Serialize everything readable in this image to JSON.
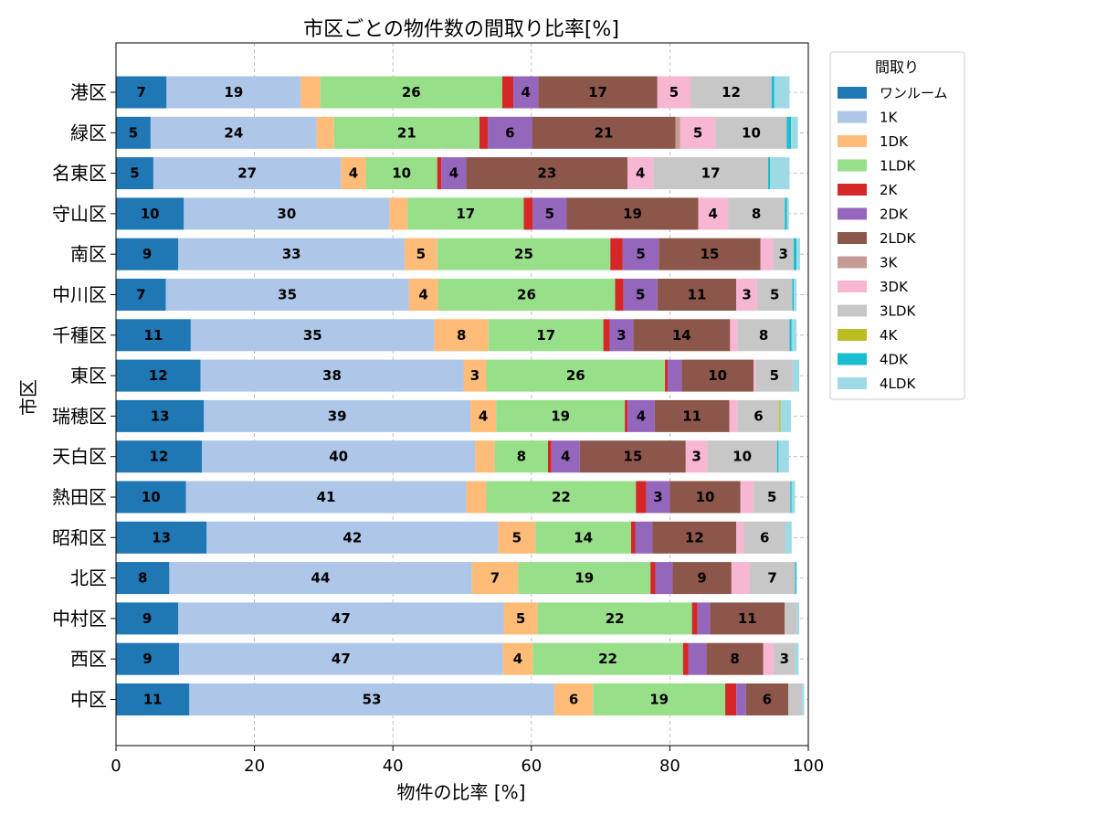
{
  "chart_data": {
    "type": "bar",
    "orientation": "horizontal",
    "stacked": true,
    "title": "市区ごとの物件数の間取り比率[%]",
    "xlabel": "物件の比率 [%]",
    "ylabel": "市区",
    "xlim": [
      0,
      100
    ],
    "xticks": [
      "0",
      "20",
      "40",
      "60",
      "80",
      "100"
    ],
    "grid": true,
    "legend": {
      "title": "間取り",
      "placement": "outside-right"
    },
    "label_min_value": 3,
    "categories": [
      "港区",
      "緑区",
      "名東区",
      "守山区",
      "南区",
      "中川区",
      "千種区",
      "東区",
      "瑞穂区",
      "天白区",
      "熱田区",
      "昭和区",
      "北区",
      "中村区",
      "西区",
      "中区"
    ],
    "series": [
      {
        "name": "ワンルーム",
        "color": "#1f77b4",
        "values": [
          7.3,
          5,
          5.4,
          9.8,
          9,
          7.2,
          10.8,
          12.2,
          12.7,
          12.4,
          10.1,
          13.1,
          7.7,
          9,
          9.1,
          10.6
        ]
      },
      {
        "name": "1K",
        "color": "#aec7e8",
        "values": [
          19.4,
          24,
          27.1,
          29.7,
          32.7,
          35.1,
          35.2,
          38,
          38.5,
          39.5,
          40.5,
          42.1,
          43.7,
          47,
          46.8,
          52.7
        ]
      },
      {
        "name": "1DK",
        "color": "#ffbb78",
        "values": [
          2.8,
          2.5,
          3.6,
          2.6,
          4.7,
          4.2,
          7.8,
          3.3,
          3.7,
          2.8,
          2.9,
          5.4,
          6.7,
          4.9,
          4.3,
          5.6
        ]
      },
      {
        "name": "1LDK",
        "color": "#98df8a",
        "values": [
          26.3,
          21,
          10.3,
          16.8,
          25,
          25.6,
          16.6,
          25.8,
          18.6,
          7.7,
          21.6,
          13.8,
          19.1,
          22.3,
          21.7,
          19.1
        ]
      },
      {
        "name": "2K",
        "color": "#d62728",
        "values": [
          1.6,
          1.2,
          0.6,
          1.3,
          1.8,
          1.2,
          0.9,
          0.4,
          0.4,
          0.5,
          1.5,
          0.6,
          0.7,
          0.8,
          0.8,
          1.6
        ]
      },
      {
        "name": "2DK",
        "color": "#9467bd",
        "values": [
          3.6,
          6.4,
          3.6,
          4.9,
          5.2,
          4.9,
          3.4,
          2,
          3.9,
          4.1,
          3.4,
          2.5,
          2.5,
          1.8,
          2.6,
          1.4
        ]
      },
      {
        "name": "2LDK",
        "color": "#8c564b",
        "values": [
          17.2,
          20.7,
          23.3,
          19,
          14.7,
          11.4,
          14,
          10.4,
          10.8,
          15.3,
          10.2,
          12.1,
          8.5,
          10.8,
          8.2,
          6.1
        ]
      },
      {
        "name": "3K",
        "color": "#c49c94",
        "values": [
          0,
          0.7,
          0,
          0,
          0,
          0,
          0,
          0,
          0,
          0,
          0,
          0,
          0,
          0,
          0,
          0
        ]
      },
      {
        "name": "3DK",
        "color": "#f7b6d2",
        "values": [
          4.8,
          5.1,
          3.7,
          4.3,
          1.8,
          3,
          1.1,
          0.3,
          1.2,
          3.1,
          1.9,
          1.1,
          2.6,
          0,
          1.5,
          0
        ]
      },
      {
        "name": "3LDK",
        "color": "#c7c7c7",
        "values": [
          11.7,
          10.3,
          16.6,
          8.2,
          3,
          5.1,
          7.5,
          5.4,
          6,
          10.1,
          5.3,
          6,
          6.6,
          1.8,
          3.1,
          2
        ]
      },
      {
        "name": "4K",
        "color": "#bcbd22",
        "values": [
          0,
          0,
          0,
          0,
          0,
          0,
          0,
          0,
          0.2,
          0,
          0,
          0,
          0,
          0,
          0,
          0
        ]
      },
      {
        "name": "4DK",
        "color": "#17becf",
        "values": [
          0.4,
          0.6,
          0.3,
          0.3,
          0.4,
          0.2,
          0.3,
          0,
          0,
          0.2,
          0.2,
          0,
          0.2,
          0,
          0,
          0
        ]
      },
      {
        "name": "4LDK",
        "color": "#9edae5",
        "values": [
          2.2,
          1,
          2.8,
          0.3,
          0.5,
          0.4,
          0.7,
          0.9,
          1.5,
          1.5,
          0.5,
          0.9,
          0,
          0.3,
          0.5,
          0.3
        ]
      }
    ]
  }
}
